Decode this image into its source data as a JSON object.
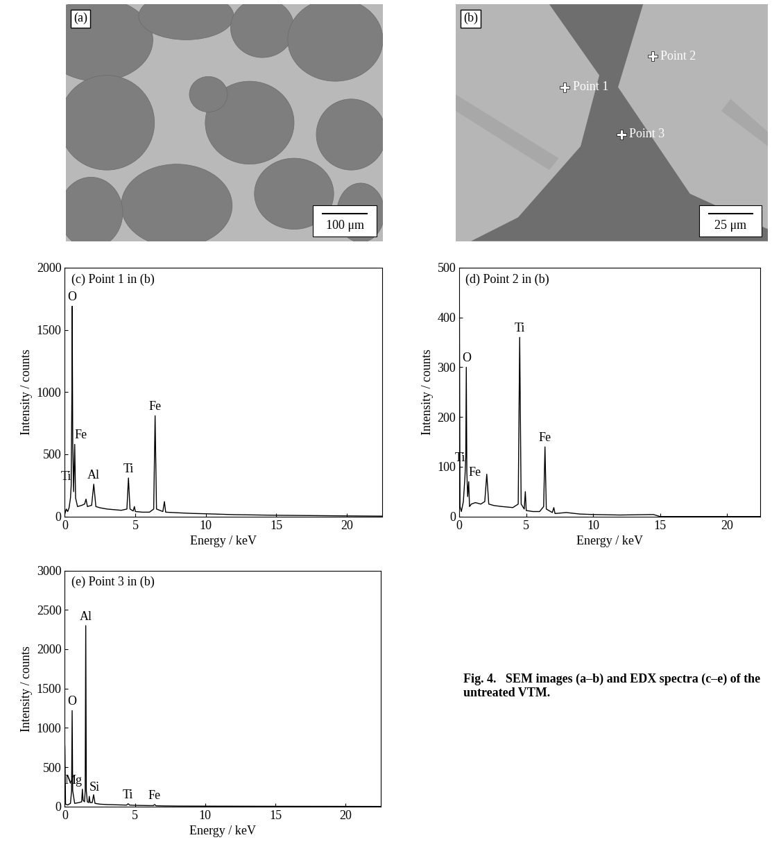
{
  "caption": "Fig. 4.   SEM images (a–b) and EDX spectra (c–e) of the untreated VTM.",
  "images": [
    {
      "label": "(a)",
      "scale_bar": "100 μm"
    },
    {
      "label": "(b)",
      "scale_bar": "25 μm",
      "points": [
        "Point 1",
        "Point 2",
        "Point 3"
      ]
    }
  ],
  "chart_data": [
    {
      "type": "line",
      "title": "(c) Point 1 in (b)",
      "x_label": "Energy / keV",
      "y_label": "Intensity / counts",
      "color": "#000000",
      "x": [
        0,
        0.1,
        0.2,
        0.3,
        0.4,
        0.45,
        0.5,
        0.52,
        0.56,
        0.62,
        0.7,
        0.76,
        0.9,
        1.2,
        1.4,
        1.5,
        1.6,
        1.9,
        2.05,
        2.2,
        2.5,
        3.0,
        3.5,
        4.0,
        4.4,
        4.51,
        4.62,
        4.85,
        4.93,
        5.0,
        5.5,
        6.0,
        6.3,
        6.4,
        6.5,
        6.95,
        7.06,
        7.15,
        8,
        9,
        10,
        12,
        15,
        20,
        22.5
      ],
      "values": [
        20,
        60,
        40,
        70,
        150,
        250,
        1000,
        1690,
        600,
        200,
        580,
        150,
        80,
        90,
        100,
        140,
        80,
        90,
        260,
        80,
        70,
        60,
        55,
        50,
        60,
        310,
        60,
        45,
        80,
        40,
        35,
        35,
        60,
        810,
        60,
        40,
        120,
        35,
        30,
        25,
        22,
        15,
        10,
        5,
        3
      ],
      "xlim": [
        0,
        22.5
      ],
      "xticks": [
        0,
        5,
        10,
        15,
        20
      ],
      "ylim": [
        0,
        2000
      ],
      "yticks": [
        0,
        500,
        1000,
        1500,
        2000
      ],
      "annotations": [
        {
          "text": "O",
          "x": 0.52,
          "y": 1690
        },
        {
          "text": "Fe",
          "x": 0.7,
          "y": 580
        },
        {
          "text": "Ti",
          "x": 0.45,
          "y": 250
        },
        {
          "text": "Al",
          "x": 2.05,
          "y": 260
        },
        {
          "text": "Ti",
          "x": 4.51,
          "y": 310
        },
        {
          "text": "Fe",
          "x": 6.4,
          "y": 810
        }
      ]
    },
    {
      "type": "line",
      "title": "(d) Point 2 in (b)",
      "x_label": "Energy / keV",
      "y_label": "Intensity / counts",
      "color": "#000000",
      "x": [
        0,
        0.05,
        0.15,
        0.3,
        0.42,
        0.45,
        0.48,
        0.52,
        0.56,
        0.62,
        0.7,
        0.76,
        0.9,
        1.2,
        1.6,
        1.9,
        2.05,
        2.2,
        2.6,
        3.2,
        4.0,
        4.4,
        4.51,
        4.62,
        4.85,
        4.93,
        5.0,
        5.5,
        6.0,
        6.3,
        6.4,
        6.5,
        6.95,
        7.06,
        7.15,
        8,
        9,
        10,
        12,
        14.5,
        15,
        20,
        22.5
      ],
      "values": [
        460,
        20,
        10,
        30,
        80,
        100,
        120,
        300,
        90,
        40,
        70,
        20,
        25,
        28,
        25,
        30,
        85,
        25,
        22,
        20,
        18,
        25,
        360,
        25,
        15,
        50,
        12,
        10,
        10,
        20,
        140,
        15,
        8,
        18,
        6,
        8,
        5,
        4,
        3,
        4,
        0,
        0,
        0
      ],
      "xlim": [
        0,
        22.5
      ],
      "xticks": [
        0,
        5,
        10,
        15,
        20
      ],
      "ylim": [
        0,
        500
      ],
      "yticks": [
        0,
        100,
        200,
        300,
        400,
        500
      ],
      "annotations": [
        {
          "text": "O",
          "x": 0.52,
          "y": 300
        },
        {
          "text": "Ti",
          "x": 0.45,
          "y": 100
        },
        {
          "text": "Fe",
          "x": 0.7,
          "y": 70
        },
        {
          "text": "Ti",
          "x": 4.51,
          "y": 360
        },
        {
          "text": "Fe",
          "x": 6.4,
          "y": 140
        }
      ]
    },
    {
      "type": "line",
      "title": "(e) Point 3 in (b)",
      "x_label": "Energy / keV",
      "y_label": "Intensity / counts",
      "color": "#000000",
      "x": [
        0,
        0.05,
        0.2,
        0.4,
        0.48,
        0.52,
        0.56,
        0.7,
        1.0,
        1.2,
        1.25,
        1.3,
        1.4,
        1.45,
        1.49,
        1.53,
        1.6,
        1.7,
        1.74,
        1.8,
        1.95,
        2.05,
        2.15,
        2.5,
        3,
        4,
        4.4,
        4.51,
        4.62,
        5,
        6,
        6.3,
        6.4,
        6.5,
        7,
        8,
        10,
        15,
        20,
        22.5
      ],
      "values": [
        770,
        30,
        20,
        40,
        200,
        1220,
        200,
        40,
        50,
        60,
        220,
        80,
        60,
        200,
        2300,
        200,
        60,
        50,
        130,
        50,
        50,
        150,
        40,
        30,
        25,
        20,
        18,
        35,
        18,
        15,
        12,
        12,
        25,
        10,
        8,
        6,
        5,
        3,
        2,
        1
      ],
      "xlim": [
        0,
        22.5
      ],
      "xticks": [
        0,
        5,
        10,
        15,
        20
      ],
      "ylim": [
        0,
        3000
      ],
      "yticks": [
        0,
        500,
        1000,
        1500,
        2000,
        2500,
        3000
      ],
      "annotations": [
        {
          "text": "O",
          "x": 0.52,
          "y": 1220
        },
        {
          "text": "Mg",
          "x": 1.25,
          "y": 220
        },
        {
          "text": "Al",
          "x": 1.49,
          "y": 2300
        },
        {
          "text": "Si",
          "x": 1.74,
          "y": 130
        },
        {
          "text": "Ti",
          "x": 4.51,
          "y": 35
        },
        {
          "text": "Fe",
          "x": 6.4,
          "y": 25
        }
      ]
    }
  ]
}
